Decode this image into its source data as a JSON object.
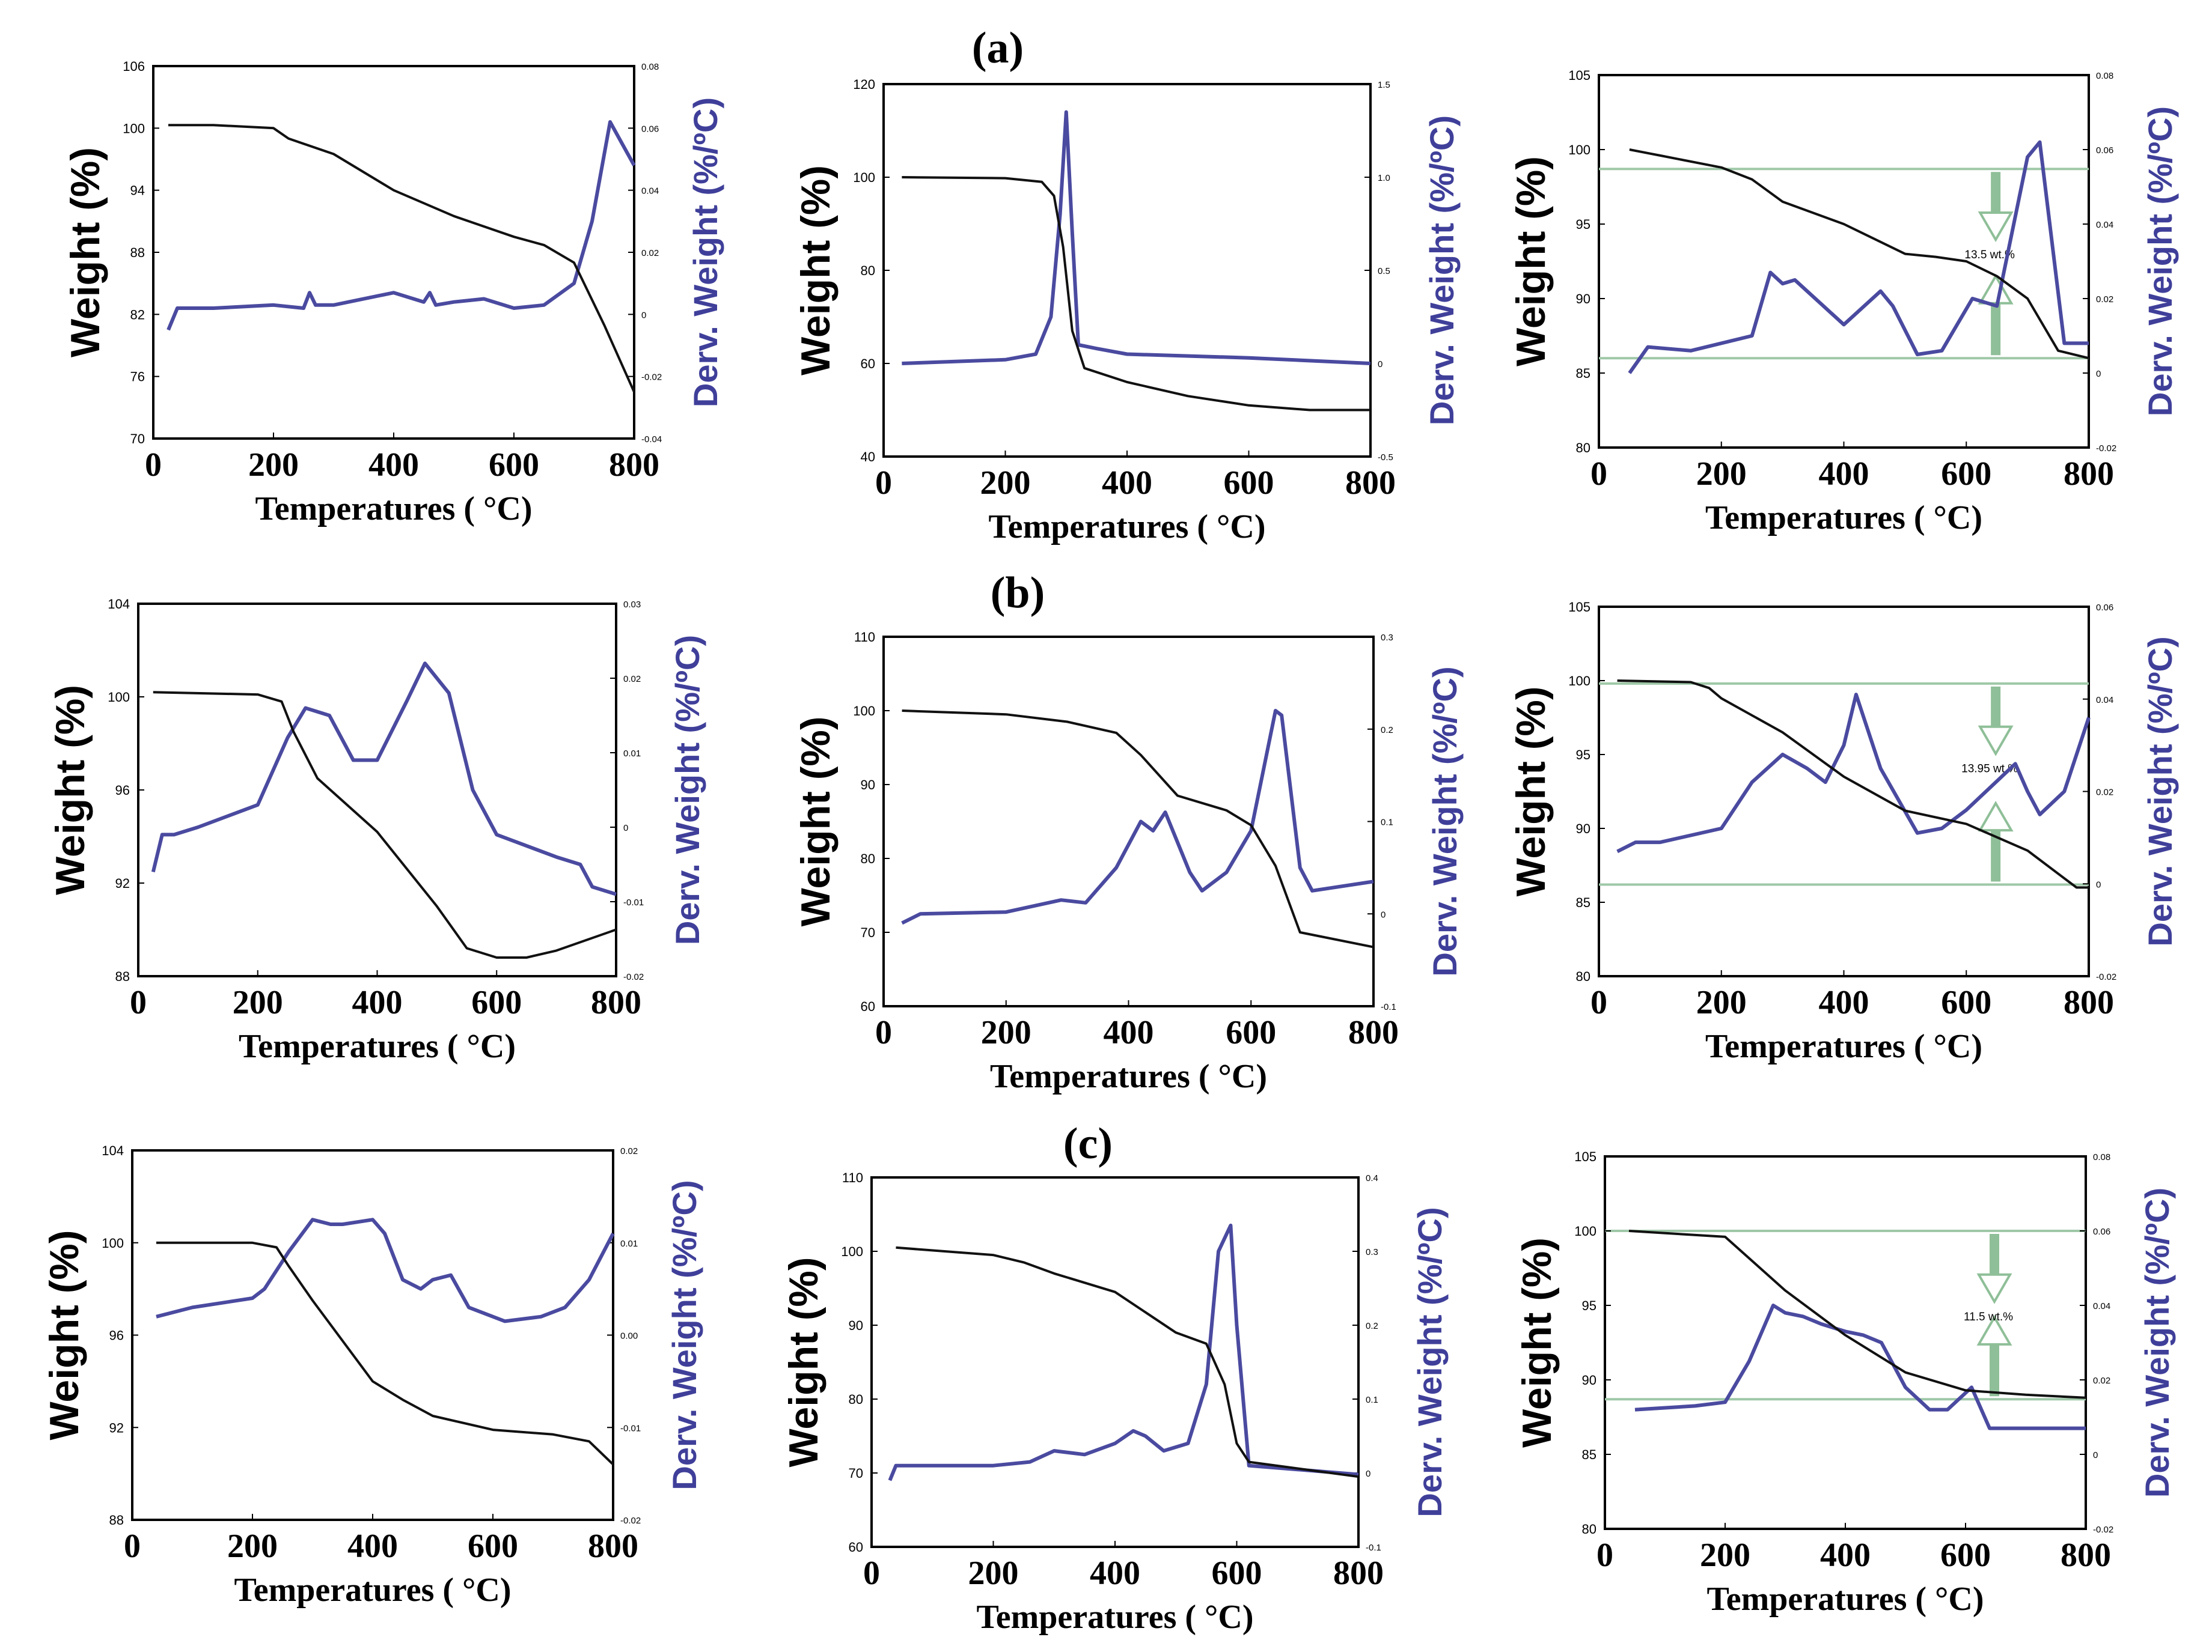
{
  "row_labels": [
    "(a)",
    "(b)",
    "(c)"
  ],
  "colors": {
    "weight": "#111111",
    "derivative": "#4a4aa0",
    "baseline": "#9fc8a8",
    "arrow": "#8fbf98"
  },
  "chart_data": [
    {
      "type": "line",
      "id": "a-left",
      "xlabel": "Temperatures ( °C)",
      "ylabel": "Weight (%)",
      "y2label": "Derv. Weight (%/ºC)",
      "xlim": [
        0,
        800
      ],
      "xticks": [
        "0",
        "200",
        "400",
        "600",
        "800"
      ],
      "ylim": [
        70,
        106
      ],
      "yticks": [
        "70",
        "76",
        "82",
        "88",
        "94",
        "100",
        "106"
      ],
      "y2lim": [
        -0.04,
        0.08
      ],
      "y2ticks": [
        "-0.04",
        "-0.02",
        "0",
        "0.02",
        "0.04",
        "0.06",
        "0.08"
      ],
      "weight": {
        "x": [
          25,
          100,
          200,
          225,
          300,
          400,
          500,
          600,
          650,
          700,
          750,
          800
        ],
        "y": [
          100.3,
          100.3,
          100,
          99,
          97.5,
          94,
          91.5,
          89.5,
          88.7,
          87,
          81,
          74.5
        ]
      },
      "derivative": {
        "x": [
          25,
          40,
          60,
          100,
          200,
          250,
          260,
          270,
          300,
          400,
          450,
          460,
          470,
          500,
          550,
          600,
          650,
          700,
          730,
          760,
          780,
          800
        ],
        "y": [
          -0.005,
          0.002,
          0.002,
          0.002,
          0.003,
          0.002,
          0.007,
          0.003,
          0.003,
          0.007,
          0.004,
          0.007,
          0.003,
          0.004,
          0.005,
          0.002,
          0.003,
          0.01,
          0.03,
          0.062,
          0.055,
          0.048
        ]
      },
      "baselines": [],
      "annotation": ""
    },
    {
      "type": "line",
      "id": "a-middle",
      "xlabel": "Temperatures ( °C)",
      "ylabel": "Weight (%)",
      "y2label": "Derv. Weight (%/ºC)",
      "xlim": [
        0,
        800
      ],
      "xticks": [
        "0",
        "200",
        "400",
        "600",
        "800"
      ],
      "ylim": [
        40,
        120
      ],
      "yticks": [
        "40",
        "60",
        "80",
        "100",
        "120"
      ],
      "y2lim": [
        -0.5,
        1.5
      ],
      "y2ticks": [
        "-0.5",
        "0",
        "0.5",
        "1.0",
        "1.5"
      ],
      "weight": {
        "x": [
          30,
          200,
          260,
          280,
          295,
          310,
          330,
          400,
          500,
          600,
          700,
          800
        ],
        "y": [
          100,
          99.8,
          99,
          96,
          85,
          67,
          59,
          56,
          53,
          51,
          50,
          50
        ]
      },
      "derivative": {
        "x": [
          30,
          200,
          250,
          275,
          290,
          300,
          310,
          320,
          350,
          400,
          600,
          800
        ],
        "y": [
          0,
          0.02,
          0.05,
          0.25,
          0.8,
          1.35,
          0.7,
          0.1,
          0.08,
          0.05,
          0.03,
          0
        ]
      },
      "baselines": [],
      "annotation": ""
    },
    {
      "type": "line",
      "id": "a-right",
      "xlabel": "Temperatures ( °C)",
      "ylabel": "Weight (%)",
      "y2label": "Derv. Weight (%/ºC)",
      "xlim": [
        0,
        800
      ],
      "xticks": [
        "0",
        "200",
        "400",
        "600",
        "800"
      ],
      "ylim": [
        80,
        105
      ],
      "yticks": [
        "80",
        "85",
        "90",
        "95",
        "100",
        "105"
      ],
      "y2lim": [
        -0.02,
        0.08
      ],
      "y2ticks": [
        "-0.02",
        "0",
        "0.02",
        "0.04",
        "0.06",
        "0.08"
      ],
      "weight": {
        "x": [
          50,
          100,
          200,
          250,
          300,
          400,
          500,
          550,
          600,
          650,
          700,
          750,
          800
        ],
        "y": [
          100,
          99.6,
          98.8,
          98,
          96.5,
          95,
          93,
          92.8,
          92.5,
          91.5,
          90,
          86.5,
          86
        ]
      },
      "derivative": {
        "x": [
          50,
          80,
          150,
          250,
          280,
          300,
          320,
          400,
          460,
          480,
          520,
          560,
          610,
          650,
          700,
          720,
          760,
          800
        ],
        "y": [
          0,
          0.007,
          0.006,
          0.01,
          0.027,
          0.024,
          0.025,
          0.013,
          0.022,
          0.018,
          0.005,
          0.006,
          0.02,
          0.018,
          0.058,
          0.062,
          0.008,
          0.008
        ]
      },
      "baselines": [
        98.7,
        86
      ],
      "annotation": "13.5 wt.%"
    },
    {
      "type": "line",
      "id": "b-left",
      "xlabel": "Temperatures ( °C)",
      "ylabel": "Weight (%)",
      "y2label": "Derv. Weight (%/ºC)",
      "xlim": [
        0,
        800
      ],
      "xticks": [
        "0",
        "200",
        "400",
        "600",
        "800"
      ],
      "ylim": [
        88,
        104
      ],
      "yticks": [
        "88",
        "92",
        "96",
        "100",
        "104"
      ],
      "y2lim": [
        -0.02,
        0.03
      ],
      "y2ticks": [
        "-0.02",
        "-0.01",
        "0",
        "0.01",
        "0.02",
        "0.03"
      ],
      "weight": {
        "x": [
          25,
          200,
          240,
          260,
          300,
          400,
          500,
          550,
          600,
          650,
          700,
          800
        ],
        "y": [
          100.2,
          100.1,
          99.8,
          98.5,
          96.5,
          94.2,
          91,
          89.2,
          88.8,
          88.8,
          89.1,
          90
        ]
      },
      "derivative": {
        "x": [
          25,
          40,
          60,
          100,
          200,
          250,
          280,
          320,
          360,
          400,
          450,
          480,
          520,
          560,
          600,
          700,
          740,
          760,
          800
        ],
        "y": [
          -0.006,
          -0.001,
          -0.001,
          0.0,
          0.003,
          0.012,
          0.016,
          0.015,
          0.009,
          0.009,
          0.017,
          0.022,
          0.018,
          0.005,
          -0.001,
          -0.004,
          -0.005,
          -0.008,
          -0.009
        ]
      },
      "baselines": [],
      "annotation": ""
    },
    {
      "type": "line",
      "id": "b-middle",
      "xlabel": "Temperatures ( °C)",
      "ylabel": "Weight (%)",
      "y2label": "Derv. Weight (%/ºC)",
      "xlim": [
        0,
        800
      ],
      "xticks": [
        "0",
        "200",
        "400",
        "600",
        "800"
      ],
      "ylim": [
        60,
        110
      ],
      "yticks": [
        "60",
        "70",
        "80",
        "90",
        "100",
        "110"
      ],
      "y2lim": [
        -0.1,
        0.3
      ],
      "y2ticks": [
        "-0.1",
        "0",
        "0.1",
        "0.2",
        "0.3"
      ],
      "weight": {
        "x": [
          30,
          200,
          300,
          380,
          420,
          480,
          560,
          600,
          640,
          680,
          800
        ],
        "y": [
          100,
          99.5,
          98.5,
          97,
          94,
          88.5,
          86.5,
          84.5,
          79,
          70,
          68
        ]
      },
      "derivative": {
        "x": [
          30,
          60,
          200,
          290,
          330,
          380,
          420,
          440,
          460,
          500,
          520,
          560,
          600,
          640,
          650,
          680,
          700,
          800
        ],
        "y": [
          -0.01,
          0,
          0.002,
          0.015,
          0.012,
          0.05,
          0.1,
          0.09,
          0.11,
          0.045,
          0.025,
          0.045,
          0.09,
          0.22,
          0.215,
          0.05,
          0.025,
          0.035
        ]
      },
      "baselines": [],
      "annotation": ""
    },
    {
      "type": "line",
      "id": "b-right",
      "xlabel": "Temperatures ( °C)",
      "ylabel": "Weight (%)",
      "y2label": "Derv. Weight (%/ºC)",
      "xlim": [
        0,
        800
      ],
      "xticks": [
        "0",
        "200",
        "400",
        "600",
        "800"
      ],
      "ylim": [
        80,
        105
      ],
      "yticks": [
        "80",
        "85",
        "90",
        "95",
        "100",
        "105"
      ],
      "y2lim": [
        -0.02,
        0.06
      ],
      "y2ticks": [
        "-0.02",
        "0",
        "0.02",
        "0.04",
        "0.06"
      ],
      "weight": {
        "x": [
          30,
          150,
          180,
          200,
          300,
          400,
          500,
          600,
          700,
          780,
          800
        ],
        "y": [
          100,
          99.9,
          99.5,
          98.8,
          96.5,
          93.5,
          91.2,
          90.3,
          88.5,
          86,
          86
        ]
      },
      "derivative": {
        "x": [
          30,
          60,
          100,
          200,
          250,
          300,
          340,
          370,
          400,
          420,
          460,
          520,
          560,
          600,
          680,
          700,
          720,
          760,
          800
        ],
        "y": [
          0.007,
          0.009,
          0.009,
          0.012,
          0.022,
          0.028,
          0.025,
          0.022,
          0.03,
          0.041,
          0.025,
          0.011,
          0.012,
          0.016,
          0.026,
          0.02,
          0.015,
          0.02,
          0.036
        ]
      },
      "baselines": [
        99.8,
        86.2
      ],
      "annotation": "13.95 wt.%"
    },
    {
      "type": "line",
      "id": "c-left",
      "xlabel": "Temperatures ( °C)",
      "ylabel": "Weight (%)",
      "y2label": "Derv. Weight (%/ºC)",
      "xlim": [
        0,
        800
      ],
      "xticks": [
        "0",
        "200",
        "400",
        "600",
        "800"
      ],
      "ylim": [
        88,
        104
      ],
      "yticks": [
        "88",
        "92",
        "96",
        "100",
        "104"
      ],
      "y2lim": [
        -0.02,
        0.02
      ],
      "y2ticks": [
        "-0.02",
        "-0.01",
        "0.00",
        "0.01",
        "0.02"
      ],
      "weight": {
        "x": [
          40,
          200,
          240,
          260,
          300,
          400,
          450,
          500,
          600,
          700,
          760,
          800
        ],
        "y": [
          100,
          100,
          99.8,
          99,
          97.5,
          94,
          93.2,
          92.5,
          91.9,
          91.7,
          91.4,
          90.4
        ]
      },
      "derivative": {
        "x": [
          40,
          100,
          200,
          220,
          260,
          300,
          330,
          350,
          400,
          420,
          450,
          480,
          500,
          530,
          560,
          620,
          680,
          720,
          760,
          800
        ],
        "y": [
          0.002,
          0.003,
          0.004,
          0.005,
          0.009,
          0.0125,
          0.012,
          0.012,
          0.0125,
          0.011,
          0.006,
          0.005,
          0.006,
          0.0065,
          0.003,
          0.0015,
          0.002,
          0.003,
          0.006,
          0.011
        ]
      },
      "baselines": [],
      "annotation": ""
    },
    {
      "type": "line",
      "id": "c-middle",
      "xlabel": "Temperatures ( °C)",
      "ylabel": "Weight (%)",
      "y2label": "Derv. Weight (%/ºC)",
      "xlim": [
        0,
        800
      ],
      "xticks": [
        "0",
        "200",
        "400",
        "600",
        "800"
      ],
      "ylim": [
        60,
        110
      ],
      "yticks": [
        "60",
        "70",
        "80",
        "90",
        "100",
        "110"
      ],
      "y2lim": [
        -0.1,
        0.4
      ],
      "y2ticks": [
        "-0.1",
        "0",
        "0.1",
        "0.2",
        "0.3",
        "0.4"
      ],
      "weight": {
        "x": [
          40,
          200,
          250,
          300,
          400,
          500,
          550,
          580,
          600,
          620,
          800
        ],
        "y": [
          100.5,
          99.5,
          98.5,
          97,
          94.5,
          89,
          87.5,
          82,
          74,
          71.5,
          69.5
        ]
      },
      "derivative": {
        "x": [
          30,
          40,
          100,
          200,
          260,
          300,
          350,
          400,
          430,
          450,
          480,
          520,
          550,
          570,
          590,
          600,
          620,
          800
        ],
        "y": [
          -0.01,
          0.01,
          0.01,
          0.01,
          0.015,
          0.03,
          0.025,
          0.04,
          0.057,
          0.05,
          0.03,
          0.04,
          0.12,
          0.3,
          0.335,
          0.2,
          0.01,
          -0.002
        ]
      },
      "baselines": [],
      "annotation": ""
    },
    {
      "type": "line",
      "id": "c-right",
      "xlabel": "Temperatures ( °C)",
      "ylabel": "Weight (%)",
      "y2label": "Derv. Weight (%/ºC)",
      "xlim": [
        0,
        800
      ],
      "xticks": [
        "0",
        "200",
        "400",
        "600",
        "800"
      ],
      "ylim": [
        80,
        105
      ],
      "yticks": [
        "80",
        "85",
        "90",
        "95",
        "100",
        "105"
      ],
      "y2lim": [
        -0.02,
        0.08
      ],
      "y2ticks": [
        "-0.02",
        "0",
        "0.02",
        "0.04",
        "0.06",
        "0.08"
      ],
      "weight": {
        "x": [
          40,
          200,
          300,
          400,
          500,
          600,
          700,
          800
        ],
        "y": [
          100,
          99.6,
          96,
          93,
          90.5,
          89.3,
          89,
          88.8
        ]
      },
      "derivative": {
        "x": [
          50,
          150,
          200,
          240,
          280,
          300,
          330,
          360,
          400,
          430,
          460,
          500,
          540,
          570,
          610,
          640,
          700,
          800
        ],
        "y": [
          0.012,
          0.013,
          0.014,
          0.025,
          0.04,
          0.038,
          0.037,
          0.035,
          0.033,
          0.032,
          0.03,
          0.018,
          0.012,
          0.012,
          0.018,
          0.007,
          0.007,
          0.007
        ]
      },
      "baselines": [
        100,
        88.7
      ],
      "annotation": "11.5 wt.%"
    }
  ]
}
